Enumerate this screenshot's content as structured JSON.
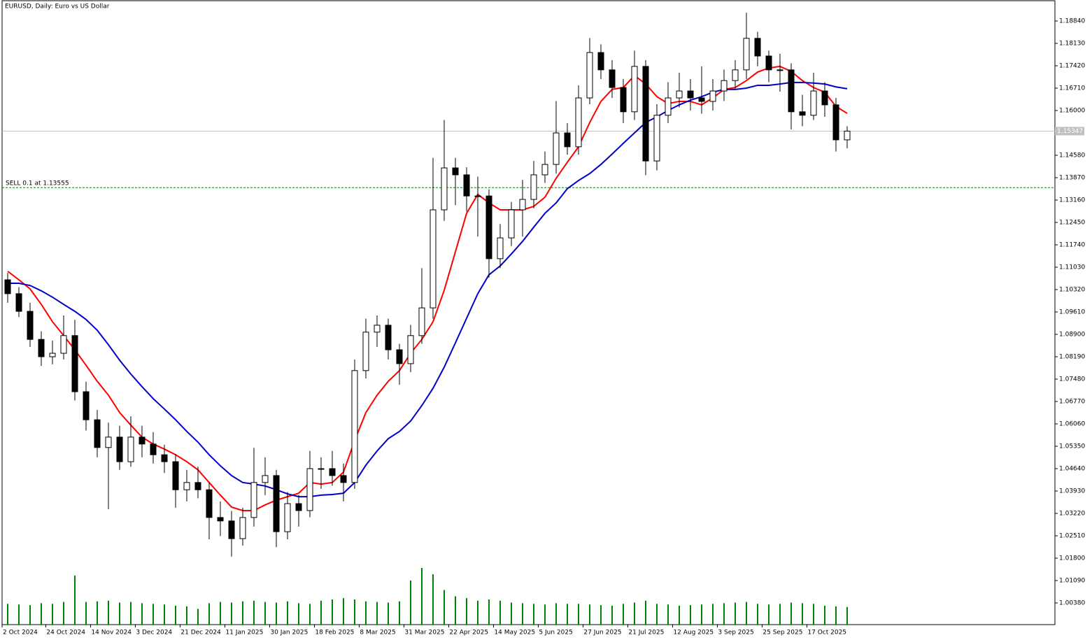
{
  "chart_data": {
    "type": "candlestick",
    "title": "EURUSD, Daily:  Euro vs US Dollar",
    "ylim": [
      0.99692,
      1.19506
    ],
    "yticks": [
      {
        "value": 1.1884,
        "label": "1.18840"
      },
      {
        "value": 1.1813,
        "label": "1.18130"
      },
      {
        "value": 1.1742,
        "label": "1.17420"
      },
      {
        "value": 1.1671,
        "label": "1.16710"
      },
      {
        "value": 1.16,
        "label": "1.16000"
      },
      {
        "value": 1.1458,
        "label": "1.14580"
      },
      {
        "value": 1.1387,
        "label": "1.13870"
      },
      {
        "value": 1.1316,
        "label": "1.13160"
      },
      {
        "value": 1.1245,
        "label": "1.12450"
      },
      {
        "value": 1.1174,
        "label": "1.11740"
      },
      {
        "value": 1.1103,
        "label": "1.11030"
      },
      {
        "value": 1.1032,
        "label": "1.10320"
      },
      {
        "value": 1.0961,
        "label": "1.09610"
      },
      {
        "value": 1.089,
        "label": "1.08900"
      },
      {
        "value": 1.0819,
        "label": "1.08190"
      },
      {
        "value": 1.0748,
        "label": "1.07480"
      },
      {
        "value": 1.0677,
        "label": "1.06770"
      },
      {
        "value": 1.0606,
        "label": "1.06060"
      },
      {
        "value": 1.0535,
        "label": "1.05350"
      },
      {
        "value": 1.0464,
        "label": "1.04640"
      },
      {
        "value": 1.0393,
        "label": "1.03930"
      },
      {
        "value": 1.0322,
        "label": "1.03220"
      },
      {
        "value": 1.0251,
        "label": "1.02510"
      },
      {
        "value": 1.018,
        "label": "1.01800"
      },
      {
        "value": 1.0109,
        "label": "1.01090"
      },
      {
        "value": 1.0038,
        "label": "1.00380"
      }
    ],
    "xticks": [
      {
        "value": -0.5,
        "label": "2 Oct 2024"
      },
      {
        "value": 3.4,
        "label": "24 Oct 2024"
      },
      {
        "value": 7.4,
        "label": "14 Nov 2024"
      },
      {
        "value": 11.4,
        "label": "3 Dec 2024"
      },
      {
        "value": 15.4,
        "label": "21 Dec 2024"
      },
      {
        "value": 19.4,
        "label": "11 Jan 2025"
      },
      {
        "value": 23.4,
        "label": "30 Jan 2025"
      },
      {
        "value": 27.4,
        "label": "18 Feb 2025"
      },
      {
        "value": 31.4,
        "label": "8 Mar 2025"
      },
      {
        "value": 35.4,
        "label": "31 Mar 2025"
      },
      {
        "value": 39.4,
        "label": "22 Apr 2025"
      },
      {
        "value": 43.4,
        "label": "14 May 2025"
      },
      {
        "value": 47.4,
        "label": "5 Jun 2025"
      },
      {
        "value": 51.4,
        "label": "27 Jun 2025"
      },
      {
        "value": 55.4,
        "label": "21 Jul 2025"
      },
      {
        "value": 59.4,
        "label": "12 Aug 2025"
      },
      {
        "value": 63.4,
        "label": "3 Sep 2025"
      },
      {
        "value": 67.4,
        "label": "25 Sep 2025"
      },
      {
        "value": 71.4,
        "label": "17 Oct 2025"
      }
    ],
    "current_price": 1.15347,
    "order_line": {
      "label": "SELL 0.1 at 1.13555",
      "value": 1.13555,
      "color": "#008000"
    },
    "ohlc": [
      [
        1.1063,
        1.1085,
        1.099,
        1.1019
      ],
      [
        1.1019,
        1.104,
        1.0945,
        1.0963
      ],
      [
        1.0963,
        1.099,
        1.085,
        1.0874
      ],
      [
        1.0874,
        1.09,
        1.079,
        1.0819
      ],
      [
        1.0819,
        1.087,
        1.0795,
        1.083
      ],
      [
        1.083,
        1.095,
        1.081,
        1.0886
      ],
      [
        1.0886,
        1.0936,
        1.068,
        1.0708
      ],
      [
        1.0708,
        1.074,
        1.0585,
        1.0619
      ],
      [
        1.0619,
        1.065,
        1.05,
        1.0531
      ],
      [
        1.0531,
        1.061,
        1.0335,
        1.0564
      ],
      [
        1.0564,
        1.06,
        1.046,
        1.0486
      ],
      [
        1.0486,
        1.063,
        1.047,
        1.0564
      ],
      [
        1.0564,
        1.06,
        1.05,
        1.0542
      ],
      [
        1.0542,
        1.058,
        1.048,
        1.0508
      ],
      [
        1.0508,
        1.054,
        1.045,
        1.0486
      ],
      [
        1.0486,
        1.051,
        1.034,
        1.0397
      ],
      [
        1.0397,
        1.046,
        1.036,
        1.042
      ],
      [
        1.042,
        1.047,
        1.037,
        1.0397
      ],
      [
        1.0397,
        1.042,
        1.024,
        1.0309
      ],
      [
        1.0309,
        1.036,
        1.025,
        1.0298
      ],
      [
        1.0298,
        1.033,
        1.0185,
        1.0242
      ],
      [
        1.0242,
        1.034,
        1.022,
        1.0309
      ],
      [
        1.0309,
        1.053,
        1.028,
        1.042
      ],
      [
        1.042,
        1.05,
        1.038,
        1.0442
      ],
      [
        1.0442,
        1.046,
        1.0215,
        1.0264
      ],
      [
        1.0264,
        1.039,
        1.024,
        1.0353
      ],
      [
        1.0353,
        1.038,
        1.028,
        1.0331
      ],
      [
        1.0331,
        1.052,
        1.031,
        1.0464
      ],
      [
        1.0464,
        1.05,
        1.04,
        1.0464
      ],
      [
        1.0464,
        1.052,
        1.041,
        1.0442
      ],
      [
        1.0442,
        1.048,
        1.036,
        1.042
      ],
      [
        1.042,
        1.081,
        1.04,
        1.0775
      ],
      [
        1.0775,
        1.094,
        1.075,
        1.0897
      ],
      [
        1.0897,
        1.095,
        1.085,
        1.0919
      ],
      [
        1.0919,
        1.094,
        1.081,
        1.0841
      ],
      [
        1.0841,
        1.086,
        1.073,
        1.0797
      ],
      [
        1.0797,
        1.092,
        1.077,
        1.0886
      ],
      [
        1.0886,
        1.11,
        1.086,
        1.0974
      ],
      [
        1.0974,
        1.145,
        1.094,
        1.1285
      ],
      [
        1.1285,
        1.157,
        1.125,
        1.1418
      ],
      [
        1.1418,
        1.145,
        1.13,
        1.1396
      ],
      [
        1.1396,
        1.142,
        1.128,
        1.1329
      ],
      [
        1.1329,
        1.139,
        1.12,
        1.1329
      ],
      [
        1.1329,
        1.135,
        1.107,
        1.113
      ],
      [
        1.113,
        1.124,
        1.11,
        1.1196
      ],
      [
        1.1196,
        1.131,
        1.117,
        1.1285
      ],
      [
        1.1285,
        1.138,
        1.12,
        1.1318
      ],
      [
        1.1318,
        1.144,
        1.129,
        1.1396
      ],
      [
        1.1396,
        1.147,
        1.137,
        1.1429
      ],
      [
        1.1429,
        1.163,
        1.14,
        1.1529
      ],
      [
        1.1529,
        1.156,
        1.146,
        1.1485
      ],
      [
        1.1485,
        1.168,
        1.146,
        1.164
      ],
      [
        1.164,
        1.183,
        1.162,
        1.1784
      ],
      [
        1.1784,
        1.181,
        1.17,
        1.1729
      ],
      [
        1.1729,
        1.176,
        1.164,
        1.1673
      ],
      [
        1.1673,
        1.17,
        1.156,
        1.1596
      ],
      [
        1.1596,
        1.179,
        1.157,
        1.174
      ],
      [
        1.174,
        1.176,
        1.1395,
        1.144
      ],
      [
        1.144,
        1.162,
        1.141,
        1.1585
      ],
      [
        1.1585,
        1.169,
        1.156,
        1.164
      ],
      [
        1.164,
        1.172,
        1.161,
        1.1662
      ],
      [
        1.1662,
        1.17,
        1.16,
        1.164
      ],
      [
        1.164,
        1.174,
        1.159,
        1.1629
      ],
      [
        1.1629,
        1.17,
        1.16,
        1.1662
      ],
      [
        1.1662,
        1.173,
        1.163,
        1.1695
      ],
      [
        1.1695,
        1.176,
        1.167,
        1.1729
      ],
      [
        1.1729,
        1.191,
        1.17,
        1.1829
      ],
      [
        1.1829,
        1.185,
        1.174,
        1.1773
      ],
      [
        1.1773,
        1.179,
        1.169,
        1.1729
      ],
      [
        1.1729,
        1.178,
        1.166,
        1.1729
      ],
      [
        1.1729,
        1.175,
        1.154,
        1.1596
      ],
      [
        1.1596,
        1.165,
        1.155,
        1.1585
      ],
      [
        1.1585,
        1.172,
        1.157,
        1.1662
      ],
      [
        1.1662,
        1.169,
        1.158,
        1.1618
      ],
      [
        1.1618,
        1.164,
        1.147,
        1.1507
      ],
      [
        1.1507,
        1.155,
        1.148,
        1.15347
      ]
    ],
    "lines": [
      {
        "color": "#ff0000",
        "values": [
          1.109,
          1.1063,
          1.1034,
          1.0985,
          1.093,
          1.0886,
          1.0841,
          1.0792,
          1.0741,
          1.0697,
          1.0642,
          1.0602,
          1.0564,
          1.0542,
          1.0526,
          1.0508,
          1.0486,
          1.046,
          1.042,
          1.038,
          1.0342,
          1.0331,
          1.0331,
          1.0349,
          1.0364,
          1.0375,
          1.0386,
          1.042,
          1.0415,
          1.042,
          1.0453,
          1.0553,
          1.0642,
          1.0697,
          1.0741,
          1.0775,
          1.083,
          1.0874,
          1.093,
          1.103,
          1.1152,
          1.1274,
          1.1334,
          1.1307,
          1.1285,
          1.1285,
          1.1285,
          1.1296,
          1.1325,
          1.1385,
          1.1436,
          1.1485,
          1.1562,
          1.1629,
          1.1667,
          1.1673,
          1.1711,
          1.1684,
          1.1644,
          1.1622,
          1.1629,
          1.1629,
          1.1618,
          1.164,
          1.1667,
          1.1673,
          1.1695,
          1.1722,
          1.1735,
          1.174,
          1.1724,
          1.1695,
          1.1673,
          1.1658,
          1.1613,
          1.1591
        ]
      },
      {
        "color": "#0000c8",
        "values": [
          1.1052,
          1.1052,
          1.1045,
          1.1028,
          1.1008,
          1.0985,
          1.0963,
          1.0937,
          1.0903,
          1.0857,
          1.0808,
          1.0764,
          1.0724,
          1.0686,
          1.0653,
          1.0619,
          1.0582,
          1.0548,
          1.0508,
          1.0473,
          1.0442,
          1.042,
          1.0415,
          1.0409,
          1.0397,
          1.0384,
          1.0375,
          1.0375,
          1.038,
          1.0382,
          1.0386,
          1.042,
          1.0475,
          1.052,
          1.0559,
          1.0582,
          1.0615,
          1.0664,
          1.0719,
          1.0786,
          1.0863,
          1.0941,
          1.1019,
          1.1079,
          1.1107,
          1.1145,
          1.1185,
          1.123,
          1.1274,
          1.1307,
          1.1352,
          1.1378,
          1.14,
          1.1429,
          1.1462,
          1.1496,
          1.1529,
          1.1562,
          1.158,
          1.16,
          1.1618,
          1.1633,
          1.1644,
          1.1658,
          1.1667,
          1.1667,
          1.1671,
          1.168,
          1.168,
          1.1684,
          1.1689,
          1.1689,
          1.1687,
          1.1684,
          1.1675,
          1.1669
        ]
      }
    ],
    "volume_color": "#008000",
    "vlim": [
      0,
      200000
    ],
    "volume": [
      33000,
      32000,
      31000,
      34000,
      33000,
      36000,
      78000,
      36000,
      37000,
      38000,
      35000,
      36000,
      34000,
      33000,
      32000,
      30000,
      29000,
      25000,
      34000,
      36000,
      35000,
      37000,
      38000,
      36000,
      35000,
      37000,
      34000,
      33000,
      38000,
      40000,
      42000,
      40000,
      37000,
      36000,
      35000,
      37000,
      70000,
      90000,
      80000,
      55000,
      45000,
      42000,
      38000,
      40000,
      38000,
      35000,
      34000,
      33000,
      32000,
      34000,
      33000,
      33000,
      32000,
      31000,
      30000,
      33000,
      35000,
      38000,
      33000,
      32000,
      30000,
      31000,
      32000,
      33000,
      34000,
      35000,
      36000,
      33000,
      32000,
      33000,
      35000,
      34000,
      33000,
      30000,
      29000,
      28000
    ]
  }
}
